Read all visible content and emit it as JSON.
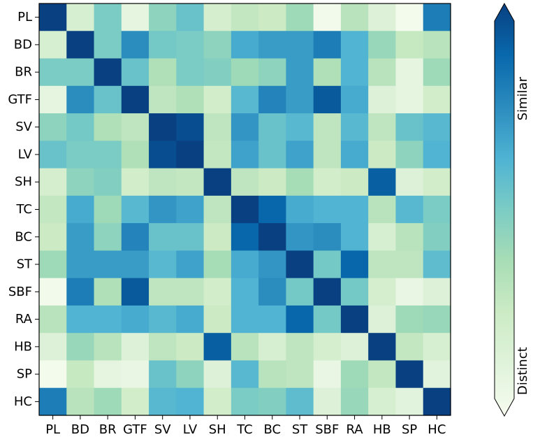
{
  "chart_data": {
    "type": "heatmap",
    "title": "",
    "xlabel": "",
    "ylabel": "",
    "row_labels": [
      "PL",
      "BD",
      "BR",
      "GTF",
      "SV",
      "LV",
      "SH",
      "TC",
      "BC",
      "ST",
      "SBF",
      "RA",
      "HB",
      "SP",
      "HC"
    ],
    "col_labels": [
      "PL",
      "BD",
      "BR",
      "GTF",
      "SV",
      "LV",
      "SH",
      "TC",
      "BC",
      "ST",
      "SBF",
      "RA",
      "HB",
      "SP",
      "HC"
    ],
    "value_range": [
      0,
      1
    ],
    "matrix": [
      [
        1.0,
        0.18,
        0.5,
        0.1,
        0.45,
        0.55,
        0.2,
        0.28,
        0.25,
        0.4,
        0.03,
        0.32,
        0.15,
        0.02,
        0.8
      ],
      [
        0.18,
        1.0,
        0.5,
        0.75,
        0.52,
        0.5,
        0.45,
        0.65,
        0.7,
        0.7,
        0.8,
        0.62,
        0.42,
        0.27,
        0.32
      ],
      [
        0.5,
        0.5,
        1.0,
        0.55,
        0.35,
        0.5,
        0.48,
        0.4,
        0.45,
        0.7,
        0.35,
        0.62,
        0.32,
        0.1,
        0.4
      ],
      [
        0.1,
        0.75,
        0.55,
        1.0,
        0.3,
        0.35,
        0.22,
        0.6,
        0.78,
        0.7,
        0.92,
        0.65,
        0.15,
        0.1,
        0.22
      ],
      [
        0.45,
        0.52,
        0.35,
        0.3,
        1.0,
        0.96,
        0.3,
        0.72,
        0.55,
        0.6,
        0.3,
        0.6,
        0.3,
        0.55,
        0.6
      ],
      [
        0.55,
        0.5,
        0.5,
        0.35,
        0.96,
        1.0,
        0.28,
        0.68,
        0.55,
        0.68,
        0.3,
        0.65,
        0.25,
        0.45,
        0.62
      ],
      [
        0.2,
        0.45,
        0.48,
        0.22,
        0.3,
        0.28,
        1.0,
        0.3,
        0.25,
        0.38,
        0.22,
        0.25,
        0.9,
        0.15,
        0.22
      ],
      [
        0.28,
        0.65,
        0.4,
        0.6,
        0.72,
        0.68,
        0.3,
        1.0,
        0.88,
        0.65,
        0.62,
        0.62,
        0.32,
        0.6,
        0.5
      ],
      [
        0.25,
        0.7,
        0.45,
        0.78,
        0.55,
        0.55,
        0.25,
        0.88,
        1.0,
        0.72,
        0.75,
        0.62,
        0.18,
        0.32,
        0.48
      ],
      [
        0.4,
        0.7,
        0.7,
        0.7,
        0.6,
        0.68,
        0.38,
        0.65,
        0.72,
        1.0,
        0.52,
        0.88,
        0.3,
        0.3,
        0.58
      ],
      [
        0.03,
        0.8,
        0.35,
        0.92,
        0.3,
        0.3,
        0.22,
        0.62,
        0.75,
        0.52,
        1.0,
        0.52,
        0.2,
        0.08,
        0.15
      ],
      [
        0.32,
        0.62,
        0.62,
        0.65,
        0.6,
        0.65,
        0.25,
        0.62,
        0.62,
        0.88,
        0.52,
        1.0,
        0.15,
        0.4,
        0.42
      ],
      [
        0.15,
        0.42,
        0.32,
        0.15,
        0.3,
        0.25,
        0.9,
        0.32,
        0.18,
        0.3,
        0.2,
        0.15,
        1.0,
        0.28,
        0.18
      ],
      [
        0.02,
        0.27,
        0.1,
        0.08,
        0.55,
        0.45,
        0.15,
        0.6,
        0.32,
        0.3,
        0.08,
        0.4,
        0.28,
        1.0,
        0.12
      ],
      [
        0.8,
        0.32,
        0.4,
        0.22,
        0.6,
        0.62,
        0.22,
        0.5,
        0.48,
        0.58,
        0.15,
        0.42,
        0.18,
        0.12,
        1.0
      ]
    ],
    "colormap": [
      "#f7fcf0",
      "#e0f3db",
      "#ccebc5",
      "#a8ddb5",
      "#7bccc4",
      "#4eb3d3",
      "#2b8cbe",
      "#0868ac",
      "#084081"
    ],
    "colorbar": {
      "top_label": "Similar",
      "bottom_label": "Distinct",
      "extend": "both"
    },
    "grid": false
  }
}
